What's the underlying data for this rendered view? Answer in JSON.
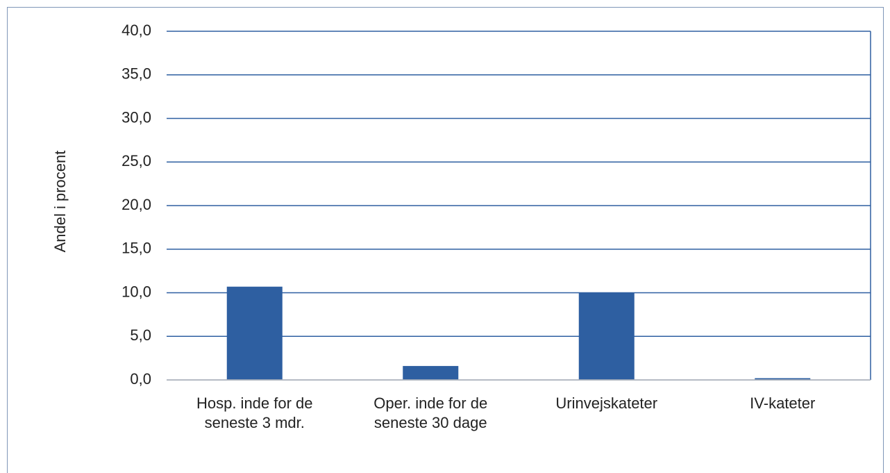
{
  "chart_data": {
    "type": "bar",
    "y_label": "Andel i procent",
    "categories": [
      "Hosp. inde for de seneste 3 mdr.",
      "Oper. inde for de seneste 30 dage",
      "Urinvejskateter",
      "IV-kateter"
    ],
    "values": [
      10.7,
      1.6,
      10.0,
      0.2
    ],
    "color": "#2e5fa1",
    "ylim": [
      0,
      40
    ],
    "yticks": [
      {
        "value": 0,
        "label": "0,0"
      },
      {
        "value": 5,
        "label": "5,0"
      },
      {
        "value": 10,
        "label": "10,0"
      },
      {
        "value": 15,
        "label": "15,0"
      },
      {
        "value": 20,
        "label": "20,0"
      },
      {
        "value": 25,
        "label": "25,0"
      },
      {
        "value": 30,
        "label": "30,0"
      },
      {
        "value": 35,
        "label": "35,0"
      },
      {
        "value": 40,
        "label": "40,0"
      }
    ],
    "grid": true
  }
}
